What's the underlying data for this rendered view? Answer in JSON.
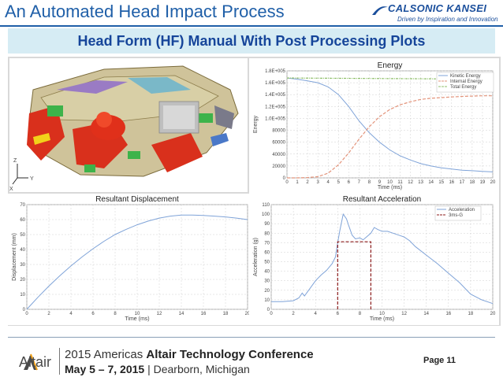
{
  "header": {
    "title": "An Automated Head Impact Process",
    "logo_name": "CALSONIC KANSEI",
    "logo_tagline": "Driven by Inspiration and Innovation",
    "subtitle": "Head Form (HF) Manual With Post Processing Plots"
  },
  "triad": {
    "z": "Z",
    "y": "Y",
    "x": "X"
  },
  "footer": {
    "brand": "Altair",
    "conference_prefix": "2015 Americas ",
    "conference_name": "Altair Technology Conference",
    "dates": "May 5 – 7, 2015",
    "location": " | Dearborn, Michigan",
    "page": "Page 11"
  },
  "chart_data": [
    {
      "type": "line",
      "title": "Energy",
      "xlabel": "Time (ms)",
      "ylabel": "Energy",
      "xlim": [
        0,
        20
      ],
      "ylim": [
        0,
        180000
      ],
      "xticks": [
        "0",
        "1",
        "2",
        "3",
        "4",
        "5",
        "6",
        "7",
        "8",
        "9",
        "10",
        "11",
        "12",
        "13",
        "14",
        "15",
        "16",
        "17",
        "18",
        "19",
        "20"
      ],
      "yticks": [
        "0",
        "20000",
        "40000",
        "60000",
        "80000",
        "1.0E+005",
        "1.2E+005",
        "1.4E+005",
        "1.6E+005",
        "1.8E+005"
      ],
      "legend": [
        "Kinetic Energy",
        "Internal Energy",
        "Total Energy"
      ],
      "legend_position": "top-right",
      "colors": [
        "#7fa3d8",
        "#e3937a",
        "#8fbf6a"
      ],
      "series": [
        {
          "name": "Kinetic Energy",
          "x": [
            0,
            1,
            2,
            3,
            4,
            5,
            6,
            7,
            8,
            9,
            10,
            11,
            12,
            13,
            14,
            15,
            16,
            17,
            18,
            19,
            20
          ],
          "values": [
            168000,
            166000,
            163000,
            160000,
            153000,
            140000,
            120000,
            96000,
            76000,
            60000,
            47000,
            37000,
            30000,
            24000,
            20000,
            17000,
            15000,
            13000,
            12000,
            11000,
            10000
          ]
        },
        {
          "name": "Internal Energy",
          "x": [
            0,
            1,
            2,
            3,
            4,
            5,
            6,
            7,
            8,
            9,
            10,
            11,
            12,
            13,
            14,
            15,
            16,
            17,
            18,
            19,
            20
          ],
          "values": [
            0,
            0,
            500,
            2000,
            8000,
            22000,
            42000,
            65000,
            86000,
            103000,
            115000,
            123000,
            128000,
            132000,
            134000,
            135000,
            136000,
            137000,
            137500,
            138000,
            138000
          ]
        },
        {
          "name": "Total Energy",
          "x": [
            0,
            20
          ],
          "values": [
            168000,
            166000
          ]
        }
      ]
    },
    {
      "type": "line",
      "title": "Resultant Displacement",
      "xlabel": "Time (ms)",
      "ylabel": "Displacement (mm)",
      "xlim": [
        0,
        20
      ],
      "ylim": [
        0,
        70
      ],
      "xticks": [
        "0",
        "2",
        "4",
        "6",
        "8",
        "10",
        "12",
        "14",
        "16",
        "18",
        "20"
      ],
      "yticks": [
        "0",
        "10",
        "20",
        "30",
        "40",
        "50",
        "60",
        "70"
      ],
      "colors": [
        "#7fa3d8"
      ],
      "series": [
        {
          "x": [
            0,
            1,
            2,
            3,
            4,
            5,
            6,
            7,
            8,
            9,
            10,
            11,
            12,
            13,
            14,
            15,
            16,
            17,
            18,
            19,
            20
          ],
          "values": [
            0,
            8,
            15.5,
            22.5,
            29,
            35,
            40.5,
            45.5,
            50,
            53.5,
            56.5,
            59,
            61,
            62.3,
            63,
            63,
            62.8,
            62.3,
            61.8,
            61,
            60
          ]
        }
      ]
    },
    {
      "type": "line",
      "title": "Resultant Acceleration",
      "xlabel": "Time (ms)",
      "ylabel": "Acceleration (g)",
      "xlim": [
        0,
        20
      ],
      "ylim": [
        0,
        110
      ],
      "xticks": [
        "0",
        "2",
        "4",
        "6",
        "8",
        "10",
        "12",
        "14",
        "16",
        "18",
        "20"
      ],
      "yticks": [
        "0",
        "10",
        "20",
        "30",
        "40",
        "50",
        "60",
        "70",
        "80",
        "90",
        "100",
        "110"
      ],
      "legend": [
        "Acceleration",
        "3ms-G"
      ],
      "legend_position": "top-right",
      "colors": [
        "#7fa3d8",
        "#8b1a1a"
      ],
      "series": [
        {
          "name": "Acceleration",
          "x": [
            0,
            1,
            2,
            2.5,
            2.8,
            3,
            3.5,
            4,
            4.5,
            5,
            5.5,
            5.8,
            6,
            6.2,
            6.5,
            6.8,
            7,
            7.3,
            7.6,
            8,
            8.3,
            8.6,
            9,
            9.3,
            9.6,
            10,
            10.5,
            11,
            11.5,
            12,
            12.5,
            13,
            14,
            15,
            16,
            17,
            18,
            19,
            20
          ],
          "values": [
            8,
            8,
            9,
            12,
            17,
            14,
            22,
            30,
            36,
            41,
            48,
            55,
            70,
            83,
            100,
            95,
            88,
            78,
            74,
            75,
            73,
            76,
            80,
            86,
            84,
            82,
            82,
            80,
            78,
            76,
            72,
            66,
            57,
            48,
            38,
            28,
            16,
            10,
            6
          ]
        },
        {
          "name": "3ms-G",
          "x": [
            6,
            6,
            9,
            9
          ],
          "values": [
            0,
            71,
            71,
            0
          ]
        }
      ]
    }
  ]
}
